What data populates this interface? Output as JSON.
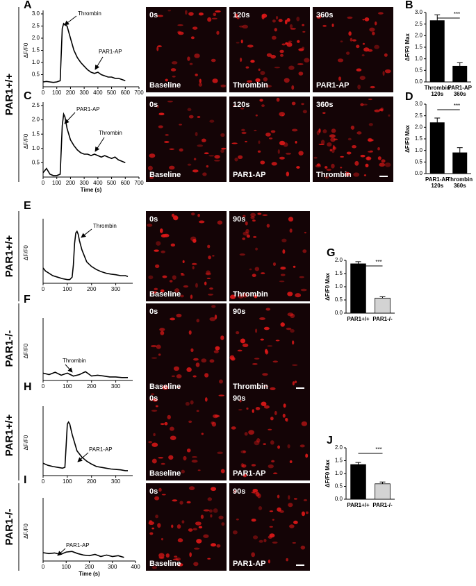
{
  "chart_data": [
    {
      "type": "line",
      "panel": "A",
      "ylabel": "ΔF/F0",
      "x": [
        0,
        25,
        50,
        75,
        100,
        125,
        140,
        150,
        160,
        175,
        200,
        225,
        250,
        275,
        300,
        325,
        350,
        375,
        400,
        425,
        450,
        475,
        500,
        525,
        550,
        575,
        600
      ],
      "values": [
        0.2,
        0.22,
        0.2,
        0.18,
        0.2,
        0.25,
        2.4,
        2.6,
        2.55,
        2.5,
        2.0,
        1.5,
        1.2,
        1.0,
        0.85,
        0.7,
        0.6,
        0.55,
        0.6,
        0.5,
        0.45,
        0.4,
        0.4,
        0.35,
        0.35,
        0.3,
        0.25
      ],
      "xlim": [
        0,
        700
      ],
      "xticks": [
        0,
        100,
        200,
        300,
        400,
        500,
        600,
        700
      ],
      "ylim": [
        0,
        3
      ],
      "yticks": [
        0.5,
        {
          "value": 1,
          "label": "1.0"
        },
        1.5,
        {
          "value": 2,
          "label": "2.0"
        },
        2.5,
        {
          "value": 3,
          "label": "3.0"
        }
      ],
      "annotations": [
        "Thrombin",
        "PAR1-AP"
      ]
    },
    {
      "type": "line",
      "panel": "C",
      "ylabel": "ΔF/F0",
      "xlabel": "Time (s)",
      "x": [
        0,
        25,
        50,
        75,
        100,
        125,
        140,
        150,
        160,
        175,
        200,
        225,
        250,
        275,
        300,
        325,
        350,
        375,
        400,
        425,
        450,
        475,
        500,
        525,
        550,
        575,
        600
      ],
      "values": [
        0.15,
        0.3,
        0.1,
        0.05,
        0.05,
        0.1,
        1.8,
        2.2,
        2.1,
        1.7,
        1.3,
        1.1,
        0.95,
        0.85,
        0.8,
        0.8,
        0.75,
        0.8,
        0.75,
        0.7,
        0.75,
        0.7,
        0.65,
        0.7,
        0.6,
        0.55,
        0.5
      ],
      "xlim": [
        0,
        700
      ],
      "xticks": [
        0,
        100,
        200,
        300,
        400,
        500,
        600,
        700
      ],
      "ylim": [
        0,
        2.5
      ],
      "yticks": [
        0.5,
        {
          "value": 1,
          "label": "1.0"
        },
        1.5,
        {
          "value": 2,
          "label": "2.0"
        },
        2.5
      ],
      "annotations": [
        "PAR1-AP",
        "Thrombin"
      ]
    },
    {
      "type": "line",
      "panel": "E",
      "ylabel": "ΔF/F0",
      "x": [
        0,
        10,
        20,
        40,
        60,
        80,
        100,
        110,
        120,
        125,
        130,
        135,
        140,
        145,
        150,
        160,
        170,
        180,
        200,
        220,
        240,
        260,
        280,
        300,
        320,
        340,
        350
      ],
      "values": [
        0.5,
        0.4,
        0.35,
        0.25,
        0.2,
        0.15,
        0.12,
        0.12,
        0.2,
        0.6,
        1.3,
        1.65,
        1.7,
        1.6,
        1.4,
        1.1,
        0.9,
        0.7,
        0.55,
        0.45,
        0.38,
        0.33,
        0.3,
        0.28,
        0.25,
        0.25,
        0.22
      ],
      "xlim": [
        0,
        370
      ],
      "xticks": [
        0,
        100,
        200,
        300
      ],
      "ylim": [
        0,
        2
      ],
      "annotations": [
        "Thrombin"
      ]
    },
    {
      "type": "line",
      "panel": "F",
      "ylabel": "ΔF/F0",
      "x": [
        0,
        25,
        50,
        75,
        100,
        125,
        150,
        175,
        200,
        225,
        250,
        275,
        300,
        325,
        350
      ],
      "values": [
        0.25,
        0.2,
        0.28,
        0.18,
        0.25,
        0.15,
        0.2,
        0.3,
        0.15,
        0.18,
        0.15,
        0.12,
        0.12,
        0.1,
        0.1
      ],
      "xlim": [
        0,
        370
      ],
      "xticks": [
        0,
        100,
        200,
        300
      ],
      "ylim": [
        0,
        2
      ],
      "annotations": [
        "Thrombin"
      ]
    },
    {
      "type": "line",
      "panel": "H",
      "ylabel": "ΔF/F0",
      "x": [
        0,
        20,
        40,
        60,
        80,
        90,
        95,
        100,
        105,
        110,
        120,
        130,
        140,
        160,
        180,
        200,
        220,
        240,
        260,
        280,
        300,
        320,
        340,
        350
      ],
      "values": [
        0.3,
        0.25,
        0.22,
        0.2,
        0.18,
        0.2,
        0.7,
        1.25,
        1.3,
        1.25,
        1.0,
        0.8,
        0.6,
        0.45,
        0.35,
        0.28,
        0.22,
        0.2,
        0.18,
        0.16,
        0.15,
        0.14,
        0.12,
        0.12
      ],
      "xlim": [
        0,
        370
      ],
      "xticks": [
        0,
        100,
        200,
        300
      ],
      "ylim": [
        0,
        1.6
      ],
      "annotations": [
        "PAR1-AP"
      ]
    },
    {
      "type": "line",
      "panel": "I",
      "ylabel": "ΔF/F0",
      "xlabel": "Time (s)",
      "x": [
        0,
        25,
        50,
        75,
        100,
        125,
        150,
        175,
        200,
        225,
        250,
        275,
        300,
        325,
        350
      ],
      "values": [
        0.28,
        0.25,
        0.27,
        0.22,
        0.3,
        0.32,
        0.25,
        0.2,
        0.18,
        0.22,
        0.15,
        0.2,
        0.15,
        0.18,
        0.12
      ],
      "xlim": [
        0,
        400
      ],
      "xticks": [
        0,
        100,
        200,
        300,
        400
      ],
      "ylim": [
        0,
        2
      ],
      "annotations": [
        "PAR1-AP"
      ]
    },
    {
      "type": "bar",
      "panel": "B",
      "ylabel": "ΔF/F0 Max",
      "significance": "***",
      "categories": [
        "Thrombin\n120s",
        "PAR1-AP\n360s"
      ],
      "values": [
        2.65,
        0.68
      ],
      "errors": [
        0.25,
        0.15
      ],
      "colors": [
        "#000000",
        "#000000"
      ],
      "ylim": [
        0,
        3
      ],
      "yticks": [
        {
          "value": 0,
          "label": "0.0"
        },
        0.5,
        {
          "value": 1,
          "label": "1.0"
        },
        1.5,
        {
          "value": 2,
          "label": "2.0"
        },
        2.5,
        {
          "value": 3,
          "label": "3.0"
        }
      ]
    },
    {
      "type": "bar",
      "panel": "D",
      "ylabel": "ΔF/F0 Max",
      "significance": "***",
      "categories": [
        "PAR1-AP\n120s",
        "Thrombin\n360s"
      ],
      "values": [
        2.2,
        0.9
      ],
      "errors": [
        0.2,
        0.22
      ],
      "colors": [
        "#000000",
        "#000000"
      ],
      "ylim": [
        0,
        3
      ],
      "yticks": [
        {
          "value": 0,
          "label": "0.0"
        },
        0.5,
        {
          "value": 1,
          "label": "1.0"
        },
        1.5,
        {
          "value": 2,
          "label": "2.0"
        },
        2.5,
        {
          "value": 3,
          "label": "3.0"
        }
      ]
    },
    {
      "type": "bar",
      "panel": "G",
      "ylabel": "ΔF/F0 Max",
      "significance": "***",
      "categories": [
        "PAR1+/+",
        "PAR1-/-"
      ],
      "values": [
        1.87,
        0.57
      ],
      "errors": [
        0.08,
        0.05
      ],
      "colors": [
        "#000000",
        "#d3d3d3"
      ],
      "ylim": [
        0,
        2
      ],
      "yticks": [
        {
          "value": 0,
          "label": "0.0"
        },
        0.5,
        {
          "value": 1,
          "label": "1.0"
        },
        1.5,
        {
          "value": 2,
          "label": "2.0"
        }
      ]
    },
    {
      "type": "bar",
      "panel": "J",
      "ylabel": "ΔF/F0 Max",
      "significance": "***",
      "categories": [
        "PAR1+/+",
        "PAR1-/-"
      ],
      "values": [
        1.35,
        0.6
      ],
      "errors": [
        0.08,
        0.07
      ],
      "colors": [
        "#000000",
        "#d3d3d3"
      ],
      "ylim": [
        0,
        2
      ],
      "yticks": [
        {
          "value": 0,
          "label": "0.0"
        },
        0.5,
        {
          "value": 1,
          "label": "1.0"
        },
        1.5,
        {
          "value": 2,
          "label": "2.0"
        }
      ]
    }
  ],
  "row_labels": [
    "PAR1+/+",
    "PAR1+/+",
    "PAR1-/-",
    "PAR1+/+",
    "PAR1-/-"
  ],
  "images": [
    {
      "time": "0s",
      "label": "Baseline"
    },
    {
      "time": "120s",
      "label": "Thrombin"
    },
    {
      "time": "360s",
      "label": "PAR1-AP"
    },
    {
      "time": "0s",
      "label": "Baseline"
    },
    {
      "time": "120s",
      "label": "PAR1-AP"
    },
    {
      "time": "360s",
      "label": "Thrombin"
    },
    {
      "time": "0s",
      "label": "Baseline"
    },
    {
      "time": "90s",
      "label": "Thrombin"
    },
    {
      "time": "0s",
      "label": "Baseline"
    },
    {
      "time": "90s",
      "label": "Thrombin"
    },
    {
      "time": "0s",
      "label": "Baseline"
    },
    {
      "time": "90s",
      "label": "PAR1-AP"
    },
    {
      "time": "0s",
      "label": "Baseline"
    },
    {
      "time": "90s",
      "label": "PAR1-AP"
    }
  ]
}
